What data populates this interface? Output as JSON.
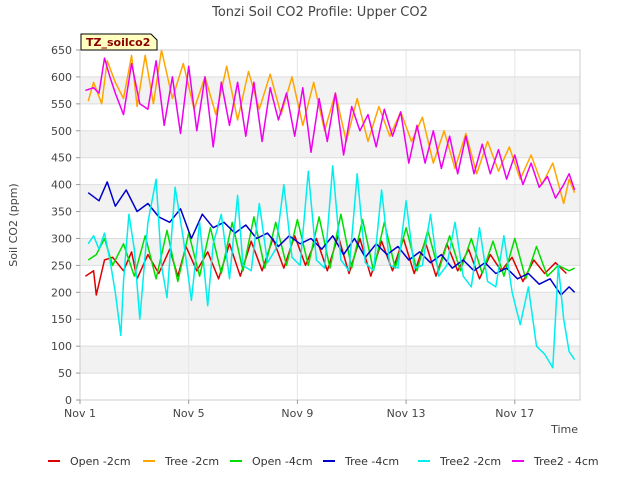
{
  "chart_data": {
    "type": "line",
    "title": "Tonzi Soil CO2 Profile: Upper CO2",
    "xlabel": "Time",
    "ylabel": "Soil CO2 (ppm)",
    "badge": "TZ_soilco2",
    "ylim": [
      0,
      650
    ],
    "xlim": [
      0,
      18.4
    ],
    "y_ticks": [
      0,
      50,
      100,
      150,
      200,
      250,
      300,
      350,
      400,
      450,
      500,
      550,
      600,
      650
    ],
    "x_ticks": [
      {
        "value": 0,
        "label": "Nov 1"
      },
      {
        "value": 4,
        "label": "Nov 5"
      },
      {
        "value": 8,
        "label": "Nov 9"
      },
      {
        "value": 12,
        "label": "Nov 13"
      },
      {
        "value": 16,
        "label": "Nov 17"
      }
    ],
    "grid": "horizontal alternating bands",
    "legend_position": "bottom",
    "series": [
      {
        "name": "Open -2cm",
        "color": "#dd0000",
        "x": [
          0.2,
          0.5,
          0.6,
          0.9,
          1.2,
          1.6,
          1.9,
          2.1,
          2.5,
          2.9,
          3.3,
          3.6,
          3.9,
          4.3,
          4.7,
          5.1,
          5.5,
          5.9,
          6.3,
          6.7,
          7.1,
          7.5,
          7.9,
          8.3,
          8.7,
          9.1,
          9.5,
          9.9,
          10.3,
          10.7,
          11.1,
          11.5,
          11.9,
          12.3,
          12.7,
          13.1,
          13.5,
          13.9,
          14.3,
          14.7,
          15.1,
          15.5,
          15.9,
          16.3,
          16.7,
          17.1,
          17.5,
          17.9
        ],
        "y": [
          230,
          240,
          195,
          260,
          265,
          240,
          275,
          225,
          270,
          235,
          280,
          230,
          285,
          240,
          275,
          225,
          290,
          230,
          295,
          240,
          300,
          245,
          305,
          250,
          300,
          240,
          305,
          235,
          300,
          230,
          295,
          240,
          300,
          235,
          295,
          230,
          290,
          240,
          280,
          225,
          270,
          240,
          265,
          220,
          260,
          235,
          255,
          235
        ]
      },
      {
        "name": "Tree -2cm",
        "color": "#ffa500",
        "x": [
          0.3,
          0.5,
          0.8,
          1.0,
          1.3,
          1.6,
          1.9,
          2.1,
          2.4,
          2.7,
          3.0,
          3.4,
          3.8,
          4.2,
          4.6,
          5.0,
          5.4,
          5.8,
          6.2,
          6.6,
          7.0,
          7.4,
          7.8,
          8.2,
          8.6,
          9.0,
          9.4,
          9.8,
          10.2,
          10.6,
          11.0,
          11.4,
          11.8,
          12.2,
          12.6,
          13.0,
          13.4,
          13.8,
          14.2,
          14.6,
          15.0,
          15.4,
          15.8,
          16.2,
          16.6,
          17.0,
          17.4,
          17.8,
          18.0,
          18.2
        ],
        "y": [
          555,
          590,
          550,
          630,
          590,
          560,
          640,
          545,
          640,
          550,
          650,
          560,
          625,
          540,
          600,
          530,
          620,
          520,
          610,
          540,
          605,
          530,
          600,
          510,
          590,
          500,
          570,
          480,
          560,
          480,
          545,
          490,
          535,
          480,
          525,
          440,
          500,
          430,
          495,
          420,
          480,
          425,
          470,
          410,
          455,
          400,
          440,
          365,
          410,
          385
        ]
      },
      {
        "name": "Open -4cm",
        "color": "#00dd00",
        "x": [
          0.3,
          0.6,
          0.9,
          1.2,
          1.6,
          2.0,
          2.4,
          2.8,
          3.2,
          3.6,
          4.0,
          4.4,
          4.8,
          5.2,
          5.6,
          6.0,
          6.4,
          6.8,
          7.2,
          7.6,
          8.0,
          8.4,
          8.8,
          9.2,
          9.6,
          10.0,
          10.4,
          10.8,
          11.2,
          11.6,
          12.0,
          12.4,
          12.8,
          13.2,
          13.6,
          14.0,
          14.4,
          14.8,
          15.2,
          15.6,
          16.0,
          16.4,
          16.8,
          17.2,
          17.6,
          18.0,
          18.2
        ],
        "y": [
          260,
          270,
          300,
          250,
          290,
          230,
          305,
          225,
          315,
          220,
          310,
          230,
          320,
          235,
          330,
          240,
          340,
          245,
          330,
          250,
          335,
          250,
          340,
          245,
          345,
          245,
          335,
          240,
          330,
          245,
          320,
          240,
          315,
          240,
          305,
          240,
          300,
          235,
          295,
          230,
          300,
          225,
          285,
          230,
          250,
          240,
          245
        ]
      },
      {
        "name": "Tree -4cm",
        "color": "#0000cc",
        "x": [
          0.3,
          0.7,
          1.0,
          1.3,
          1.7,
          2.1,
          2.5,
          2.9,
          3.3,
          3.7,
          4.1,
          4.5,
          4.9,
          5.3,
          5.7,
          6.1,
          6.5,
          6.9,
          7.3,
          7.7,
          8.1,
          8.5,
          8.9,
          9.3,
          9.7,
          10.1,
          10.5,
          10.9,
          11.3,
          11.7,
          12.1,
          12.5,
          12.9,
          13.3,
          13.7,
          14.1,
          14.5,
          14.9,
          15.3,
          15.7,
          16.1,
          16.5,
          16.9,
          17.3,
          17.7,
          18.0,
          18.2
        ],
        "y": [
          385,
          370,
          405,
          360,
          390,
          350,
          365,
          340,
          330,
          355,
          300,
          345,
          320,
          330,
          310,
          325,
          300,
          310,
          285,
          305,
          290,
          300,
          280,
          305,
          270,
          300,
          265,
          290,
          270,
          285,
          260,
          275,
          255,
          270,
          245,
          260,
          240,
          255,
          235,
          245,
          225,
          235,
          215,
          225,
          195,
          210,
          200
        ]
      },
      {
        "name": "Tree2 -2cm",
        "color": "#00eeee",
        "x": [
          0.3,
          0.5,
          0.7,
          0.9,
          1.1,
          1.3,
          1.5,
          1.6,
          1.8,
          2.0,
          2.2,
          2.5,
          2.8,
          3.0,
          3.2,
          3.5,
          3.8,
          4.1,
          4.4,
          4.7,
          4.9,
          5.2,
          5.5,
          5.8,
          6.0,
          6.3,
          6.6,
          6.9,
          7.2,
          7.5,
          7.8,
          8.1,
          8.4,
          8.7,
          9.0,
          9.3,
          9.6,
          9.9,
          10.2,
          10.5,
          10.8,
          11.1,
          11.4,
          11.7,
          12.0,
          12.3,
          12.6,
          12.9,
          13.2,
          13.5,
          13.8,
          14.1,
          14.4,
          14.7,
          15.0,
          15.3,
          15.6,
          15.9,
          16.2,
          16.5,
          16.8,
          17.1,
          17.4,
          17.6,
          17.8,
          18.0,
          18.2
        ],
        "y": [
          290,
          305,
          280,
          310,
          260,
          200,
          120,
          220,
          345,
          280,
          150,
          330,
          410,
          250,
          190,
          395,
          300,
          185,
          330,
          175,
          290,
          345,
          225,
          380,
          250,
          240,
          365,
          255,
          280,
          400,
          265,
          250,
          425,
          260,
          245,
          435,
          260,
          240,
          420,
          255,
          240,
          390,
          250,
          245,
          370,
          245,
          250,
          345,
          230,
          250,
          330,
          230,
          210,
          320,
          220,
          210,
          305,
          200,
          140,
          210,
          100,
          85,
          60,
          250,
          150,
          90,
          75
        ]
      },
      {
        "name": "Tree2 - 4cm",
        "color": "#ee00ee",
        "x": [
          0.2,
          0.5,
          0.7,
          0.9,
          1.1,
          1.3,
          1.6,
          1.9,
          2.2,
          2.5,
          2.8,
          3.1,
          3.4,
          3.7,
          4.0,
          4.3,
          4.6,
          4.9,
          5.2,
          5.5,
          5.8,
          6.1,
          6.4,
          6.7,
          7.0,
          7.3,
          7.6,
          7.9,
          8.2,
          8.5,
          8.8,
          9.1,
          9.4,
          9.7,
          10.0,
          10.3,
          10.6,
          10.9,
          11.2,
          11.5,
          11.8,
          12.1,
          12.4,
          12.7,
          13.0,
          13.3,
          13.6,
          13.9,
          14.2,
          14.5,
          14.8,
          15.1,
          15.4,
          15.7,
          16.0,
          16.3,
          16.6,
          16.9,
          17.2,
          17.5,
          17.8,
          18.0,
          18.2
        ],
        "y": [
          575,
          580,
          570,
          635,
          600,
          570,
          530,
          625,
          550,
          540,
          630,
          510,
          600,
          495,
          620,
          500,
          600,
          470,
          590,
          510,
          590,
          490,
          590,
          480,
          580,
          520,
          570,
          490,
          580,
          460,
          560,
          480,
          570,
          455,
          545,
          500,
          530,
          470,
          540,
          490,
          535,
          440,
          510,
          440,
          500,
          430,
          490,
          420,
          490,
          420,
          475,
          420,
          465,
          410,
          455,
          400,
          440,
          395,
          415,
          375,
          400,
          420,
          390
        ]
      }
    ]
  }
}
